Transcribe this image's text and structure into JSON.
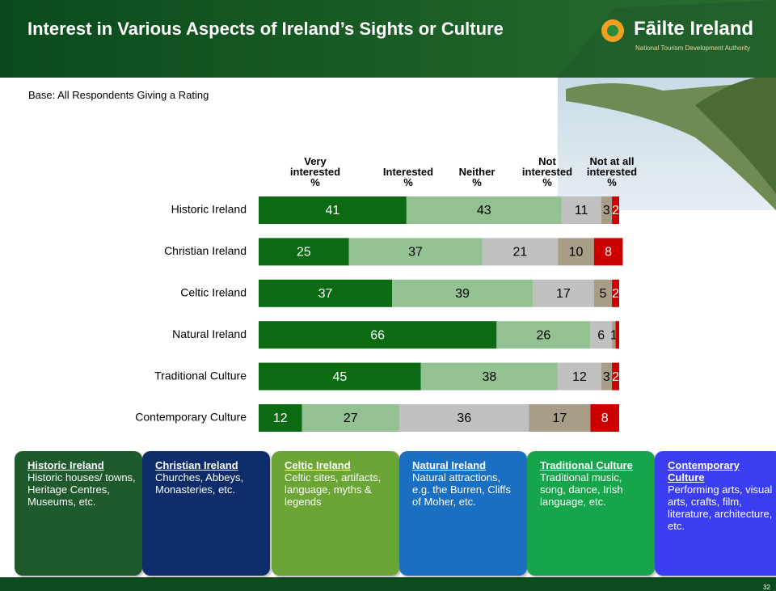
{
  "header": {
    "title": "Interest in Various Aspects of Ireland’s Sights or Culture",
    "logo": "Fāilte Ireland",
    "logo_tagline": "National Tourism Development Authority"
  },
  "subtitle": "Base: All Respondents Giving a Rating",
  "chart_data": {
    "type": "bar",
    "orientation": "horizontal",
    "stacked": true,
    "unit": "%",
    "categories": [
      "Historic Ireland",
      "Christian Ireland",
      "Celtic Ireland",
      "Natural Ireland",
      "Traditional Culture",
      "Contemporary Culture"
    ],
    "xlim": [
      0,
      100
    ],
    "series": [
      {
        "name": "Very interested",
        "color": "#0b6a12",
        "values": [
          41,
          25,
          37,
          66,
          45,
          12
        ]
      },
      {
        "name": "Interested",
        "color": "#93c191",
        "values": [
          43,
          37,
          39,
          26,
          38,
          27
        ]
      },
      {
        "name": "Neither",
        "color": "#c0c0c0",
        "values": [
          11,
          21,
          17,
          6,
          12,
          36
        ]
      },
      {
        "name": "Not interested",
        "color": "#a89e88",
        "values": [
          3,
          10,
          5,
          1,
          3,
          17
        ]
      },
      {
        "name": "Not at all interested",
        "color": "#cc0000",
        "values": [
          2,
          8,
          2,
          1,
          2,
          8
        ],
        "value_labels": [
          "2",
          "8",
          "2",
          null,
          "2",
          "8"
        ]
      }
    ]
  },
  "descriptions": [
    {
      "title": "Historic Ireland",
      "text": "Historic houses/ towns, Heritage Centres, Museums, etc.",
      "color": "#1e5a2b"
    },
    {
      "title": "Christian Ireland",
      "text": "Churches, Abbeys, Monasteries, etc.",
      "color": "#0d2d6a"
    },
    {
      "title": "Celtic Ireland",
      "text": "Celtic sites, artifacts, language, myths & legends",
      "color": "#6aa535"
    },
    {
      "title": "Natural Ireland",
      "text": "Natural attractions, e.g. the Burren, Cliffs of Moher, etc.",
      "color": "#1b6fc2"
    },
    {
      "title": "Traditional Culture",
      "text": "Traditional music, song, dance, Irish language, etc.",
      "color": "#16a54b"
    },
    {
      "title": "Contemporary Culture",
      "text": "Performing arts, visual arts, crafts, film, literature, architecture, etc.",
      "color": "#3b3ef0"
    }
  ],
  "page_number": "32"
}
